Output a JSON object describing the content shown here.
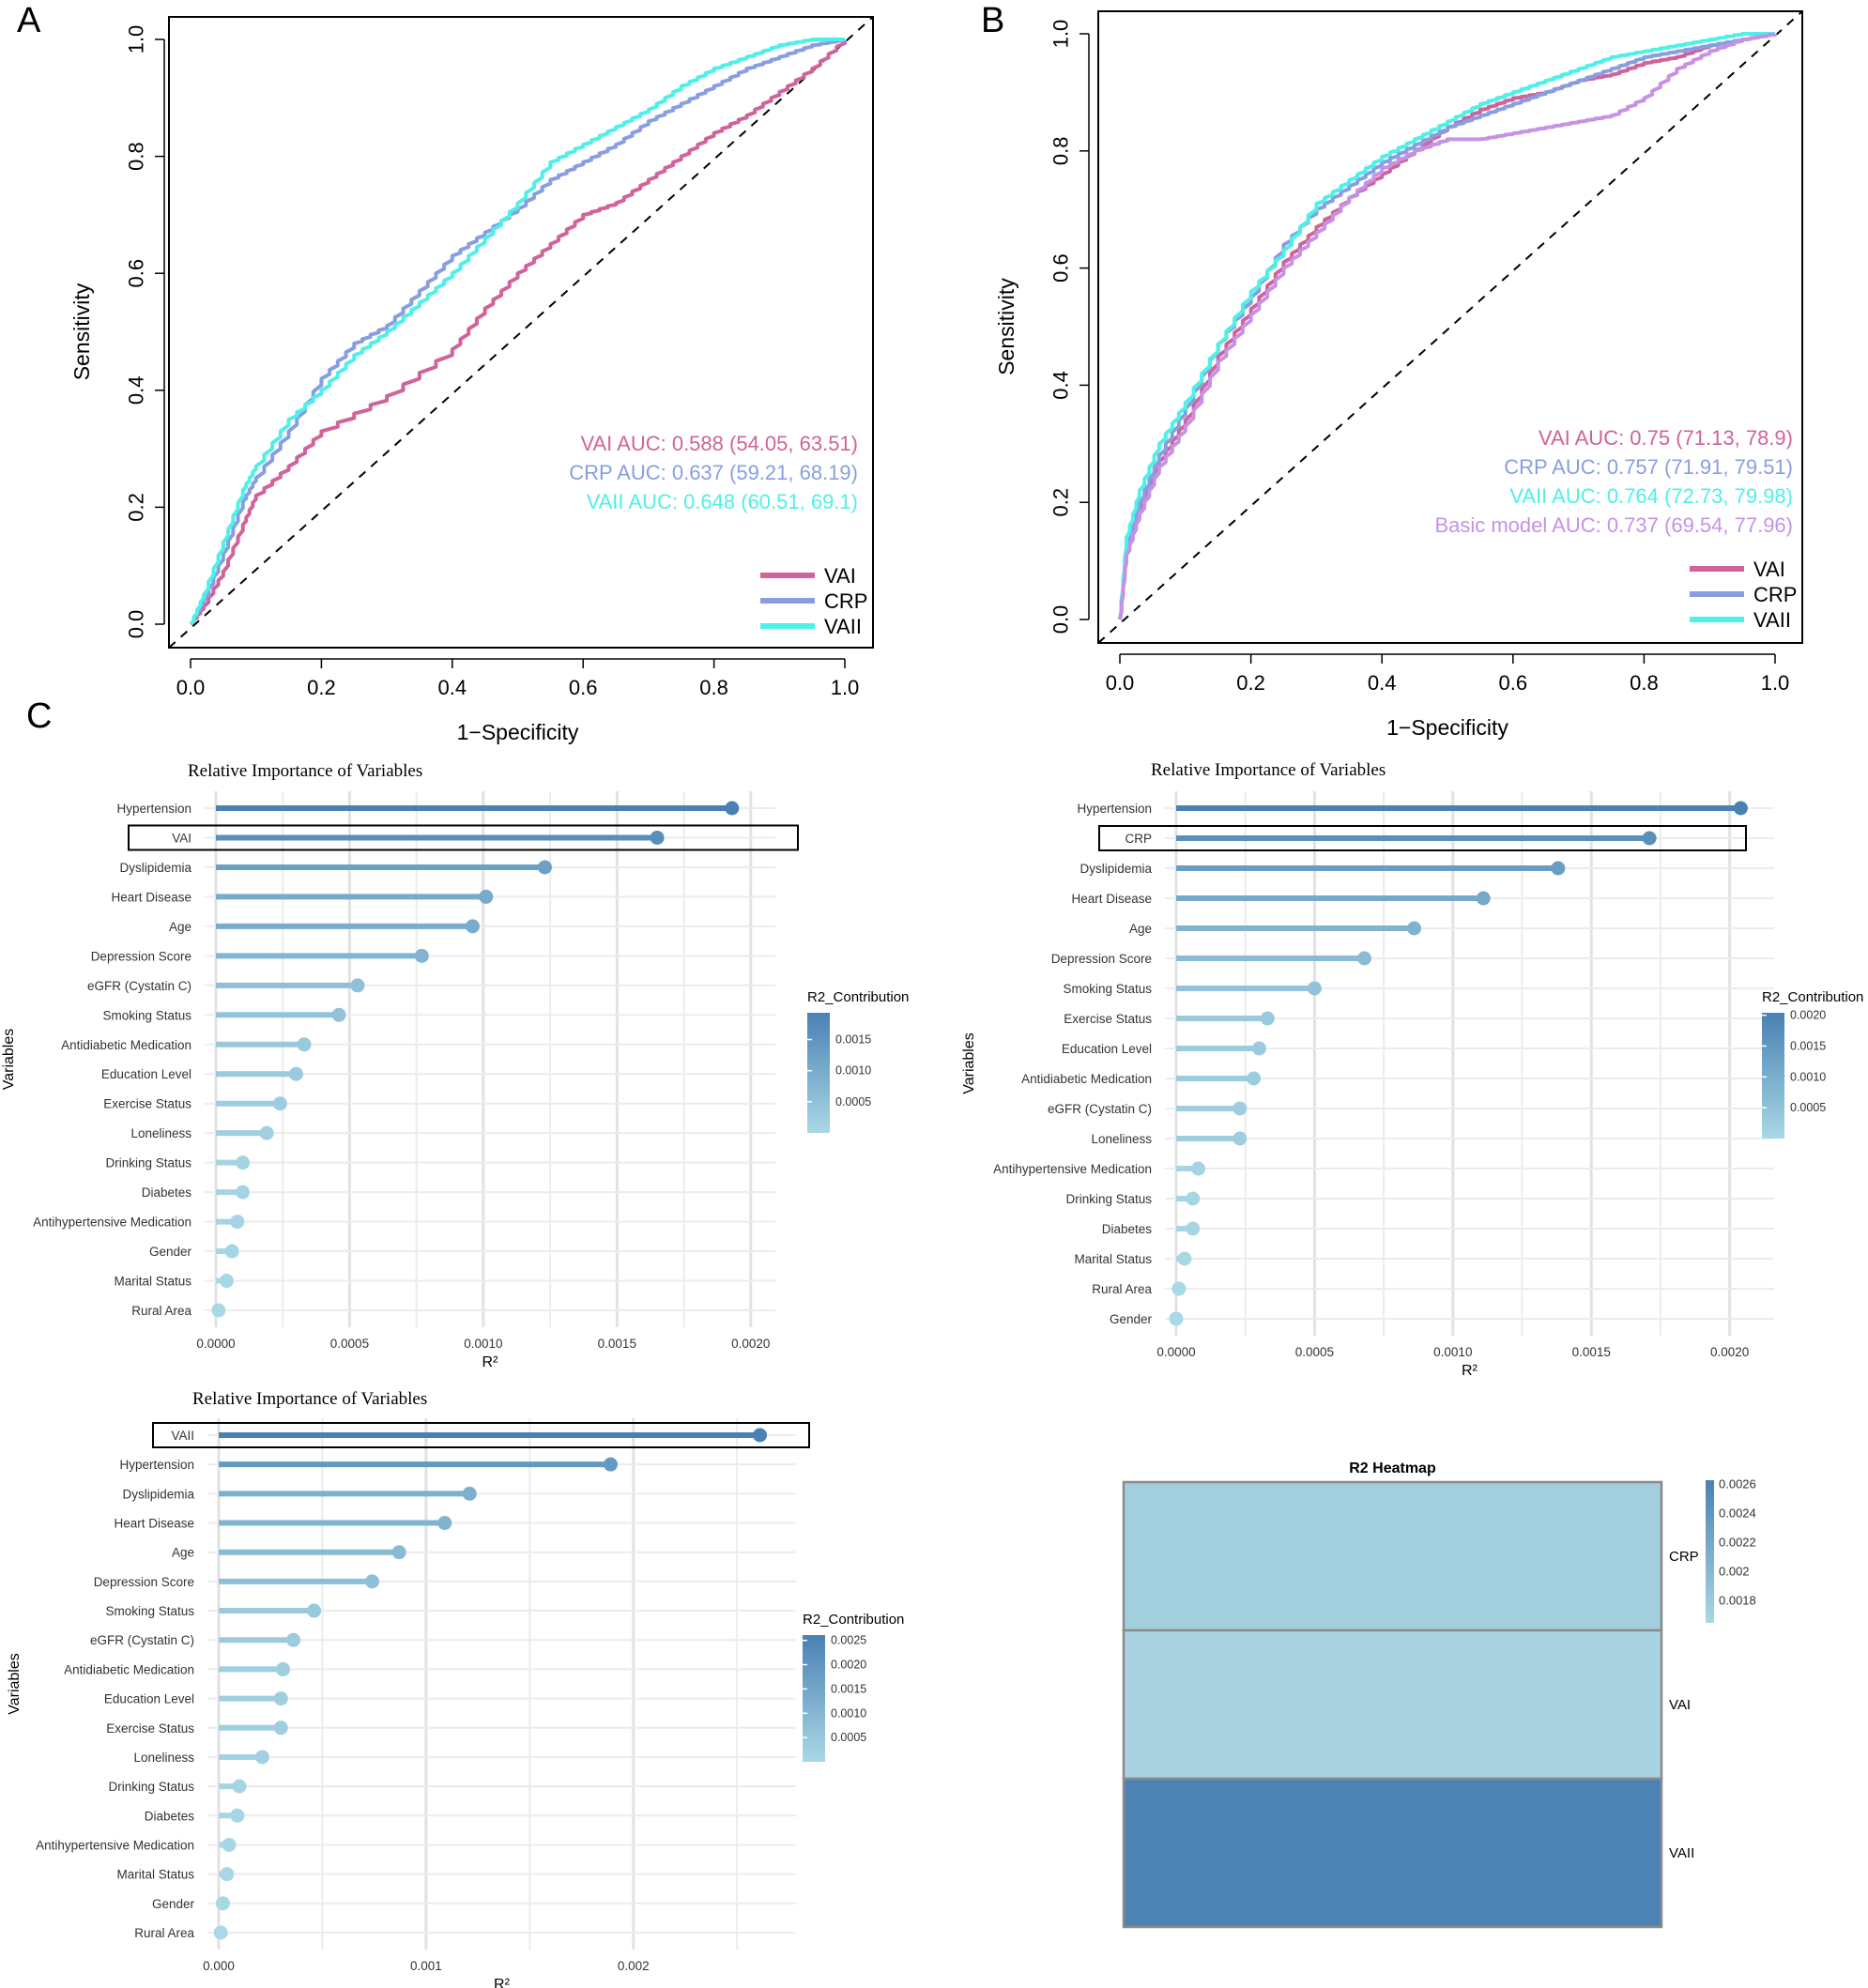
{
  "panel_labels": {
    "a": "A",
    "b": "B",
    "c": "C"
  },
  "colors": {
    "vai": "#d0639a",
    "crp": "#889ee0",
    "vaii": "#4ef0e8",
    "basic": "#c592e6",
    "bar_dark": "#4a81b3",
    "bar_light": "#a9d8e6",
    "heat_dark": "#4a81b3",
    "heat_light": "#a9d3e0"
  },
  "chart_data": [
    {
      "id": "rocA",
      "type": "line",
      "xlabel": "1−Specificity",
      "ylabel": "Sensitivity",
      "xlim": [
        0,
        1
      ],
      "ylim": [
        0,
        1
      ],
      "xticks": [
        "0.0",
        "0.2",
        "0.4",
        "0.6",
        "0.8",
        "1.0"
      ],
      "yticks": [
        "0.0",
        "0.2",
        "0.4",
        "0.6",
        "0.8",
        "1.0"
      ],
      "auc_labels": [
        "VAI AUC: 0.588 (54.05, 63.51)",
        "CRP AUC: 0.637 (59.21, 68.19)",
        "VAII AUC: 0.648 (60.51, 69.1)"
      ],
      "legend": [
        "VAI",
        "CRP",
        "VAII"
      ],
      "series": [
        {
          "name": "VAI",
          "color": "vai",
          "points": [
            [
              0,
              0
            ],
            [
              0.02,
              0.03
            ],
            [
              0.05,
              0.09
            ],
            [
              0.08,
              0.17
            ],
            [
              0.1,
              0.22
            ],
            [
              0.15,
              0.27
            ],
            [
              0.2,
              0.33
            ],
            [
              0.3,
              0.39
            ],
            [
              0.4,
              0.47
            ],
            [
              0.45,
              0.54
            ],
            [
              0.5,
              0.6
            ],
            [
              0.55,
              0.65
            ],
            [
              0.6,
              0.7
            ],
            [
              0.65,
              0.72
            ],
            [
              0.7,
              0.76
            ],
            [
              0.75,
              0.8
            ],
            [
              0.8,
              0.84
            ],
            [
              0.85,
              0.87
            ],
            [
              0.9,
              0.91
            ],
            [
              0.95,
              0.95
            ],
            [
              1,
              1
            ]
          ]
        },
        {
          "name": "CRP",
          "color": "crp",
          "points": [
            [
              0,
              0
            ],
            [
              0.02,
              0.04
            ],
            [
              0.05,
              0.12
            ],
            [
              0.08,
              0.21
            ],
            [
              0.1,
              0.25
            ],
            [
              0.15,
              0.33
            ],
            [
              0.2,
              0.42
            ],
            [
              0.25,
              0.48
            ],
            [
              0.3,
              0.51
            ],
            [
              0.35,
              0.57
            ],
            [
              0.4,
              0.63
            ],
            [
              0.45,
              0.67
            ],
            [
              0.5,
              0.71
            ],
            [
              0.55,
              0.76
            ],
            [
              0.6,
              0.79
            ],
            [
              0.65,
              0.82
            ],
            [
              0.7,
              0.86
            ],
            [
              0.75,
              0.89
            ],
            [
              0.8,
              0.92
            ],
            [
              0.85,
              0.95
            ],
            [
              0.9,
              0.97
            ],
            [
              0.95,
              0.99
            ],
            [
              1,
              1
            ]
          ]
        },
        {
          "name": "VAII",
          "color": "vaii",
          "points": [
            [
              0,
              0
            ],
            [
              0.02,
              0.05
            ],
            [
              0.05,
              0.14
            ],
            [
              0.08,
              0.23
            ],
            [
              0.1,
              0.27
            ],
            [
              0.15,
              0.35
            ],
            [
              0.2,
              0.4
            ],
            [
              0.25,
              0.46
            ],
            [
              0.3,
              0.5
            ],
            [
              0.35,
              0.55
            ],
            [
              0.4,
              0.6
            ],
            [
              0.45,
              0.66
            ],
            [
              0.5,
              0.72
            ],
            [
              0.55,
              0.79
            ],
            [
              0.6,
              0.82
            ],
            [
              0.65,
              0.85
            ],
            [
              0.7,
              0.88
            ],
            [
              0.75,
              0.92
            ],
            [
              0.8,
              0.95
            ],
            [
              0.85,
              0.97
            ],
            [
              0.9,
              0.99
            ],
            [
              0.95,
              1
            ],
            [
              1,
              1
            ]
          ]
        }
      ]
    },
    {
      "id": "rocB",
      "type": "line",
      "xlabel": "1−Specificity",
      "ylabel": "Sensitivity",
      "xlim": [
        0,
        1
      ],
      "ylim": [
        0,
        1
      ],
      "xticks": [
        "0.0",
        "0.2",
        "0.4",
        "0.6",
        "0.8",
        "1.0"
      ],
      "yticks": [
        "0.0",
        "0.2",
        "0.4",
        "0.6",
        "0.8",
        "1.0"
      ],
      "auc_labels": [
        "VAI AUC: 0.75 (71.13, 78.9)",
        "CRP AUC: 0.757 (71.91, 79.51)",
        "VAII AUC: 0.764 (72.73, 79.98)",
        "Basic model AUC: 0.737 (69.54, 77.96)"
      ],
      "legend": [
        "VAI",
        "CRP",
        "VAII"
      ],
      "series": [
        {
          "name": "VAI",
          "color": "vai",
          "points": [
            [
              0,
              0
            ],
            [
              0.01,
              0.12
            ],
            [
              0.03,
              0.19
            ],
            [
              0.06,
              0.27
            ],
            [
              0.1,
              0.34
            ],
            [
              0.15,
              0.45
            ],
            [
              0.2,
              0.53
            ],
            [
              0.25,
              0.61
            ],
            [
              0.3,
              0.67
            ],
            [
              0.35,
              0.72
            ],
            [
              0.4,
              0.76
            ],
            [
              0.45,
              0.8
            ],
            [
              0.5,
              0.84
            ],
            [
              0.55,
              0.87
            ],
            [
              0.6,
              0.89
            ],
            [
              0.65,
              0.9
            ],
            [
              0.7,
              0.92
            ],
            [
              0.75,
              0.93
            ],
            [
              0.8,
              0.95
            ],
            [
              0.85,
              0.96
            ],
            [
              0.9,
              0.98
            ],
            [
              0.95,
              0.99
            ],
            [
              1,
              1
            ]
          ]
        },
        {
          "name": "CRP",
          "color": "crp",
          "points": [
            [
              0,
              0
            ],
            [
              0.01,
              0.13
            ],
            [
              0.03,
              0.2
            ],
            [
              0.06,
              0.28
            ],
            [
              0.1,
              0.36
            ],
            [
              0.15,
              0.47
            ],
            [
              0.2,
              0.55
            ],
            [
              0.25,
              0.64
            ],
            [
              0.3,
              0.7
            ],
            [
              0.35,
              0.74
            ],
            [
              0.4,
              0.78
            ],
            [
              0.45,
              0.81
            ],
            [
              0.5,
              0.84
            ],
            [
              0.55,
              0.86
            ],
            [
              0.6,
              0.88
            ],
            [
              0.65,
              0.9
            ],
            [
              0.7,
              0.92
            ],
            [
              0.75,
              0.94
            ],
            [
              0.8,
              0.96
            ],
            [
              0.85,
              0.97
            ],
            [
              0.9,
              0.98
            ],
            [
              0.95,
              0.99
            ],
            [
              1,
              1
            ]
          ]
        },
        {
          "name": "VAII",
          "color": "vaii",
          "points": [
            [
              0,
              0
            ],
            [
              0.01,
              0.14
            ],
            [
              0.03,
              0.22
            ],
            [
              0.06,
              0.3
            ],
            [
              0.1,
              0.37
            ],
            [
              0.15,
              0.47
            ],
            [
              0.2,
              0.56
            ],
            [
              0.25,
              0.63
            ],
            [
              0.3,
              0.71
            ],
            [
              0.35,
              0.75
            ],
            [
              0.4,
              0.79
            ],
            [
              0.45,
              0.82
            ],
            [
              0.5,
              0.85
            ],
            [
              0.55,
              0.88
            ],
            [
              0.6,
              0.9
            ],
            [
              0.65,
              0.92
            ],
            [
              0.7,
              0.94
            ],
            [
              0.75,
              0.96
            ],
            [
              0.8,
              0.97
            ],
            [
              0.85,
              0.98
            ],
            [
              0.9,
              0.99
            ],
            [
              0.95,
              1
            ],
            [
              1,
              1
            ]
          ]
        },
        {
          "name": "Basic model",
          "color": "basic",
          "points": [
            [
              0,
              0
            ],
            [
              0.01,
              0.11
            ],
            [
              0.03,
              0.18
            ],
            [
              0.06,
              0.26
            ],
            [
              0.1,
              0.33
            ],
            [
              0.15,
              0.44
            ],
            [
              0.2,
              0.52
            ],
            [
              0.25,
              0.6
            ],
            [
              0.3,
              0.66
            ],
            [
              0.35,
              0.72
            ],
            [
              0.4,
              0.77
            ],
            [
              0.45,
              0.8
            ],
            [
              0.5,
              0.82
            ],
            [
              0.55,
              0.82
            ],
            [
              0.6,
              0.83
            ],
            [
              0.65,
              0.84
            ],
            [
              0.7,
              0.85
            ],
            [
              0.75,
              0.86
            ],
            [
              0.8,
              0.89
            ],
            [
              0.85,
              0.94
            ],
            [
              0.9,
              0.97
            ],
            [
              0.95,
              0.99
            ],
            [
              1,
              1
            ]
          ]
        }
      ]
    },
    {
      "id": "impVAI",
      "type": "bar",
      "title": "Relative Importance of Variables",
      "xlabel": "R²",
      "ylabel": "Variables",
      "legend_title": "R2_Contribution",
      "legend_ticks": [
        0.0005,
        0.001,
        0.0015
      ],
      "legend_labels": [
        "0.0005",
        "0.0010",
        "0.0015"
      ],
      "legend_range": [
        0,
        0.00193
      ],
      "xlim": [
        0,
        0.00205
      ],
      "xticks": [
        0,
        0.0005,
        0.001,
        0.0015,
        0.002
      ],
      "xtick_labels": [
        "0.0000",
        "0.0005",
        "0.0010",
        "0.0015",
        "0.0020"
      ],
      "highlight": "VAI",
      "categories": [
        "Hypertension",
        "VAI",
        "Dyslipidemia",
        "Heart Disease",
        "Age",
        "Depression Score",
        "eGFR (Cystatin C)",
        "Smoking Status",
        "Antidiabetic Medication",
        "Education Level",
        "Exercise Status",
        "Loneliness",
        "Drinking Status",
        "Diabetes",
        "Antihypertensive Medication",
        "Gender",
        "Marital Status",
        "Rural Area"
      ],
      "values": [
        0.00193,
        0.00165,
        0.00123,
        0.00101,
        0.00096,
        0.00077,
        0.00053,
        0.00046,
        0.00033,
        0.0003,
        0.00024,
        0.00019,
        0.0001,
        0.0001,
        8e-05,
        6e-05,
        4e-05,
        1e-05
      ]
    },
    {
      "id": "impCRP",
      "type": "bar",
      "title": "Relative Importance of Variables",
      "xlabel": "R²",
      "ylabel": "Variables",
      "legend_title": "R2_Contribution",
      "legend_ticks": [
        0.0005,
        0.001,
        0.0015,
        0.002
      ],
      "legend_labels": [
        "0.0005",
        "0.0010",
        "0.0015",
        "0.0020"
      ],
      "legend_range": [
        0,
        0.00204
      ],
      "xlim": [
        0,
        0.00212
      ],
      "xticks": [
        0,
        0.0005,
        0.001,
        0.0015,
        0.002
      ],
      "xtick_labels": [
        "0.0000",
        "0.0005",
        "0.0010",
        "0.0015",
        "0.0020"
      ],
      "highlight": "CRP",
      "categories": [
        "Hypertension",
        "CRP",
        "Dyslipidemia",
        "Heart Disease",
        "Age",
        "Depression Score",
        "Smoking Status",
        "Exercise Status",
        "Education Level",
        "Antidiabetic Medication",
        "eGFR (Cystatin C)",
        "Loneliness",
        "Antihypertensive Medication",
        "Drinking Status",
        "Diabetes",
        "Marital Status",
        "Rural Area",
        "Gender"
      ],
      "values": [
        0.00204,
        0.00171,
        0.00138,
        0.00111,
        0.00086,
        0.00068,
        0.0005,
        0.00033,
        0.0003,
        0.00028,
        0.00023,
        0.00023,
        8e-05,
        6e-05,
        6e-05,
        3e-05,
        1e-05,
        0
      ]
    },
    {
      "id": "impVAII",
      "type": "bar",
      "title": "Relative Importance of Variables",
      "xlabel": "R²",
      "ylabel": "Variables",
      "legend_title": "R2_Contribution",
      "legend_ticks": [
        0.0005,
        0.001,
        0.0015,
        0.002,
        0.0025
      ],
      "legend_labels": [
        "0.0005",
        "0.0010",
        "0.0015",
        "0.0020",
        "0.0025"
      ],
      "legend_range": [
        0,
        0.00261
      ],
      "xlim": [
        0,
        0.00273
      ],
      "xticks": [
        0,
        0.001,
        0.002
      ],
      "xtick_labels": [
        "0.000",
        "0.001",
        "0.002"
      ],
      "highlight": "VAII",
      "categories": [
        "VAII",
        "Hypertension",
        "Dyslipidemia",
        "Heart Disease",
        "Age",
        "Depression Score",
        "Smoking Status",
        "eGFR (Cystatin C)",
        "Antidiabetic Medication",
        "Education Level",
        "Exercise Status",
        "Loneliness",
        "Drinking Status",
        "Diabetes",
        "Antihypertensive Medication",
        "Marital Status",
        "Gender",
        "Rural Area"
      ],
      "values": [
        0.00261,
        0.00189,
        0.00121,
        0.00109,
        0.00087,
        0.00074,
        0.00046,
        0.00036,
        0.00031,
        0.0003,
        0.0003,
        0.00021,
        0.0001,
        9e-05,
        5e-05,
        4e-05,
        2e-05,
        1e-05
      ]
    },
    {
      "id": "heatmap",
      "type": "heatmap",
      "title": "R2 Heatmap",
      "rows": [
        "CRP",
        "VAI",
        "VAII"
      ],
      "values": [
        0.00171,
        0.00165,
        0.00261
      ],
      "legend_ticks": [
        0.0018,
        0.002,
        0.0022,
        0.0024,
        0.0026
      ],
      "legend_labels": [
        "0.0018",
        "0.002",
        "0.0022",
        "0.0024",
        "0.0026"
      ],
      "legend_range": [
        0.00165,
        0.00263
      ]
    }
  ]
}
